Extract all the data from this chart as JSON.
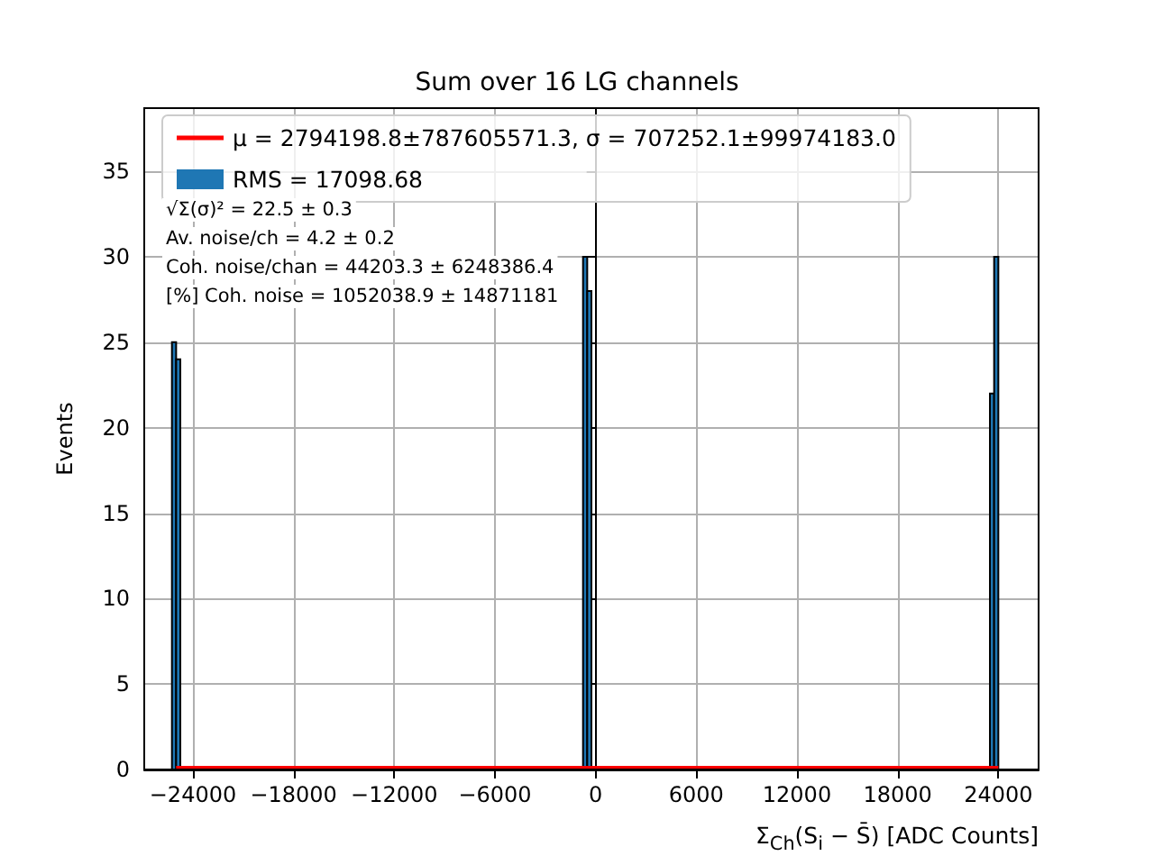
{
  "chart_data": {
    "type": "histogram",
    "title": "Sum over 16 LG channels",
    "xlabel": "Σ$_{Ch}$(S$_{i}$ − S̄) [ADC Counts]",
    "ylabel": "Events",
    "bins": [
      -25250,
      -25000,
      -24750,
      -750,
      -500,
      -250,
      23500,
      23750,
      24000
    ],
    "series": [
      {
        "name": "RMS = 17098.68",
        "color": "#1f77b4",
        "values": [
          25,
          24,
          0,
          30,
          28,
          0,
          22,
          30
        ]
      },
      {
        "type": "line",
        "name": "μ = 2794198.8±787605571.3, σ = 707252.1±99974183.0",
        "color": "#ff0000",
        "x": [
          -25000,
          24000
        ],
        "values": [
          0.1,
          0.1
        ]
      }
    ],
    "annotations": [
      "√Σ(σ)² = 22.5 ± 0.3",
      "Av. noise/ch = 4.2 ± 0.2",
      "Coh. noise/chan = 44203.3 ± 6248386.4",
      "[%] Coh. noise = 1052038.9 ± 14871181"
    ],
    "xlim": [
      -26900,
      26400
    ],
    "xticks": [
      -24000,
      -18000,
      -12000,
      -6000,
      0,
      6000,
      12000,
      18000,
      24000
    ],
    "ylim": [
      0,
      38.7
    ],
    "yticks": [
      0,
      5,
      10,
      15,
      20,
      25,
      30,
      35
    ],
    "grid": true,
    "legend": "top left",
    "marker": "none",
    "line_style": "solid"
  }
}
